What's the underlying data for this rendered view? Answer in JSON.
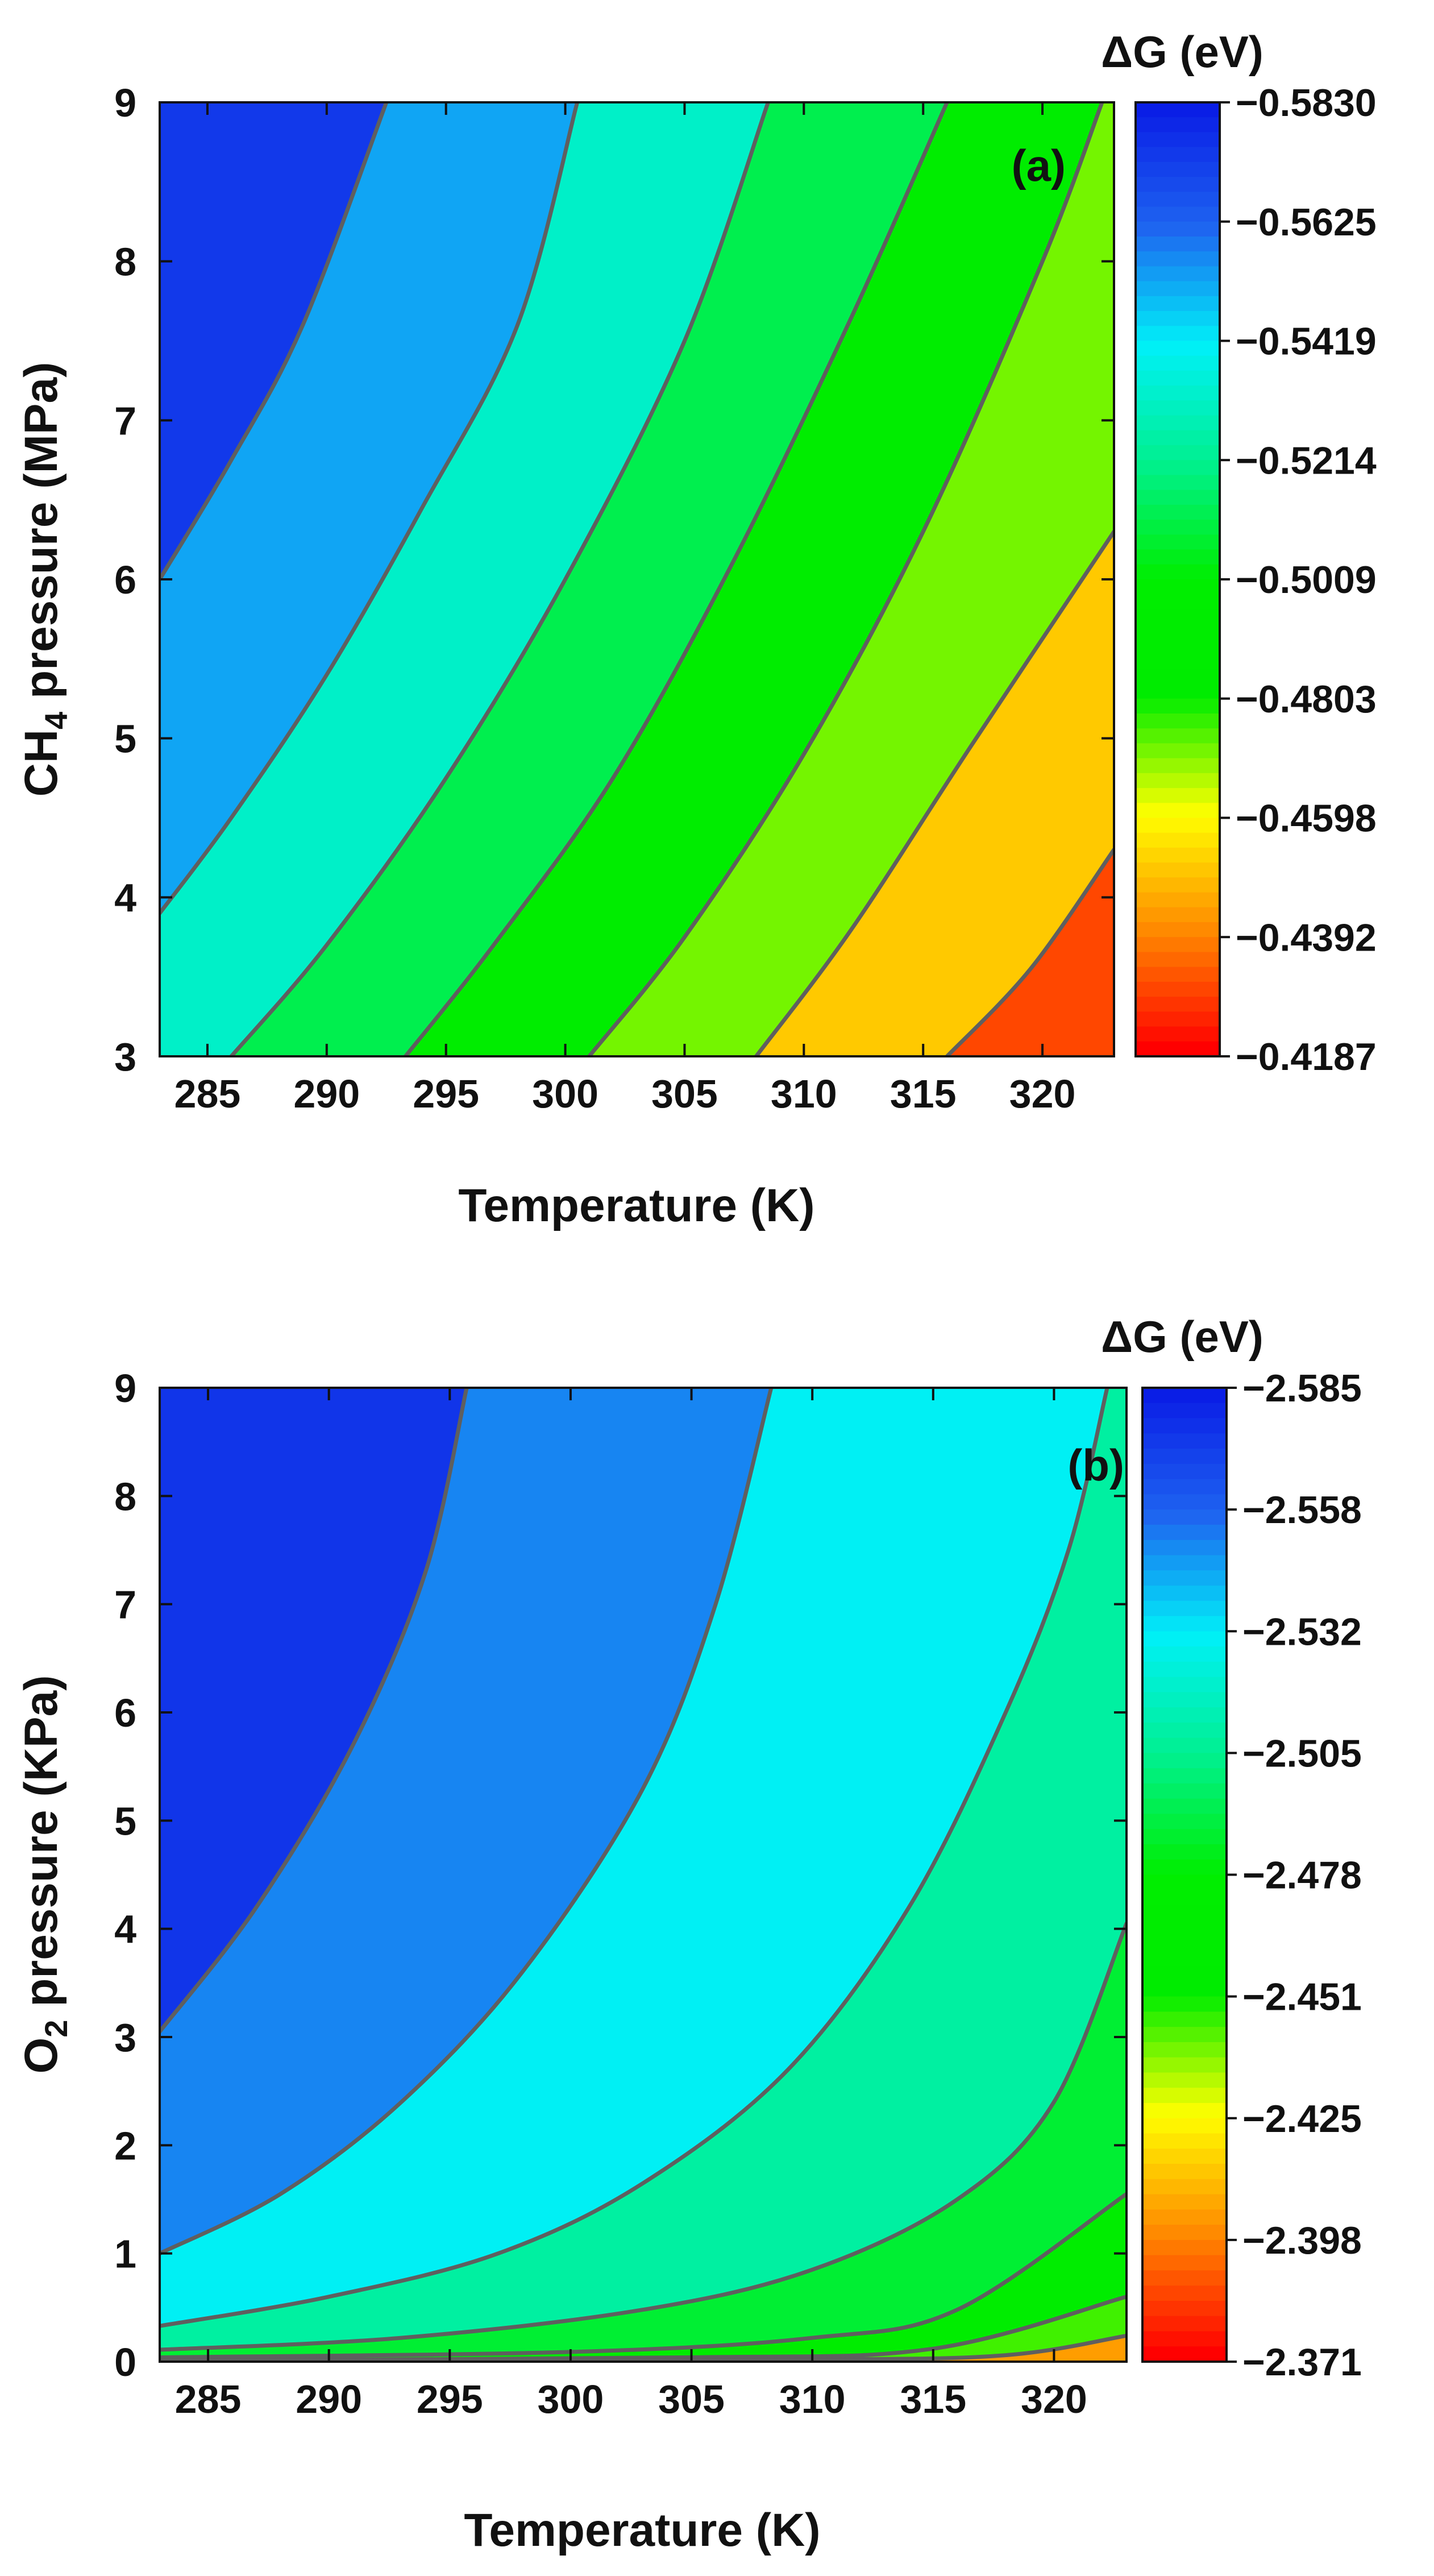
{
  "chart_data": [
    {
      "type": "heatmap",
      "panel_label": "(a)",
      "title": "",
      "xlabel": "Temperature (K)",
      "ylabel": "CH4 pressure (MPa)",
      "ylabel_main": "CH",
      "ylabel_subscript": "4",
      "ylabel_rest": " pressure (MPa)",
      "xlim": [
        283,
        323
      ],
      "ylim": [
        3,
        9
      ],
      "x_ticks": [
        285,
        290,
        295,
        300,
        305,
        310,
        315,
        320
      ],
      "y_ticks": [
        3,
        4,
        5,
        6,
        7,
        8,
        9
      ],
      "colorbar_title": "ΔG (eV)",
      "colorbar_range": [
        -0.583,
        -0.4187
      ],
      "colorbar_ticks": [
        "−0.5830",
        "−0.5625",
        "−0.5419",
        "−0.5214",
        "−0.5009",
        "−0.4803",
        "−0.4598",
        "−0.4392",
        "−0.4187"
      ],
      "colorbar_colors": [
        "#0a1ee6",
        "#1e64f0",
        "#00f0f8",
        "#00f090",
        "#00ee00",
        "#00ec00",
        "#ffff00",
        "#ff8800",
        "#ff0000"
      ],
      "contour_lines": [
        {
          "level": -0.563,
          "points": [
            [
              283,
              6.0
            ],
            [
              286,
              6.75
            ],
            [
              289,
              7.6
            ],
            [
              292.5,
              9.0
            ]
          ]
        },
        {
          "level": -0.543,
          "points": [
            [
              283,
              3.9
            ],
            [
              286,
              4.5
            ],
            [
              290,
              5.4
            ],
            [
              294,
              6.45
            ],
            [
              298,
              7.6
            ],
            [
              300.5,
              9.0
            ]
          ]
        },
        {
          "level": -0.522,
          "points": [
            [
              286,
              3.0
            ],
            [
              290,
              3.7
            ],
            [
              295,
              4.75
            ],
            [
              300,
              6.0
            ],
            [
              305,
              7.5
            ],
            [
              308.5,
              9.0
            ]
          ]
        },
        {
          "level": -0.502,
          "points": [
            [
              293.3,
              3.0
            ],
            [
              297,
              3.7
            ],
            [
              302,
              4.75
            ],
            [
              307,
              6.1
            ],
            [
              312,
              7.65
            ],
            [
              316,
              9.0
            ]
          ]
        },
        {
          "level": -0.481,
          "points": [
            [
              301,
              3.0
            ],
            [
              305,
              3.75
            ],
            [
              310,
              4.9
            ],
            [
              315,
              6.3
            ],
            [
              320,
              8.0
            ],
            [
              322.5,
              9.0
            ]
          ]
        },
        {
          "level": -0.461,
          "points": [
            [
              308,
              3.0
            ],
            [
              312,
              3.8
            ],
            [
              317,
              4.95
            ],
            [
              323,
              6.3
            ]
          ]
        },
        {
          "level": -0.44,
          "points": [
            [
              316,
              3.0
            ],
            [
              319.5,
              3.55
            ],
            [
              323,
              4.3
            ]
          ]
        }
      ]
    },
    {
      "type": "heatmap",
      "panel_label": "(b)",
      "title": "",
      "xlabel": "Temperature (K)",
      "ylabel": "O2 pressure (KPa)",
      "ylabel_main": "O",
      "ylabel_subscript": "2",
      "ylabel_rest": " pressure (KPa)",
      "xlim": [
        283,
        323
      ],
      "ylim": [
        0,
        9
      ],
      "x_ticks": [
        285,
        290,
        295,
        300,
        305,
        310,
        315,
        320
      ],
      "y_ticks": [
        0,
        1,
        2,
        3,
        4,
        5,
        6,
        7,
        8,
        9
      ],
      "colorbar_title": "ΔG (eV)",
      "colorbar_range": [
        -2.585,
        -2.371
      ],
      "colorbar_ticks": [
        "−2.585",
        "−2.558",
        "−2.532",
        "−2.505",
        "−2.478",
        "−2.451",
        "−2.425",
        "−2.398",
        "−2.371"
      ],
      "colorbar_colors": [
        "#0a1ee6",
        "#1e64f0",
        "#00f0f8",
        "#00f090",
        "#00ee00",
        "#00ec00",
        "#ffff00",
        "#ff8800",
        "#ff0000"
      ],
      "contour_lines": [
        {
          "level": -2.563,
          "points": [
            [
              283,
              3.05
            ],
            [
              287,
              4.2
            ],
            [
              291,
              5.7
            ],
            [
              294,
              7.3
            ],
            [
              295.7,
              9.0
            ]
          ]
        },
        {
          "level": -2.541,
          "points": [
            [
              283,
              1.0
            ],
            [
              288,
              1.55
            ],
            [
              293,
              2.4
            ],
            [
              298,
              3.6
            ],
            [
              303,
              5.3
            ],
            [
              306,
              7.0
            ],
            [
              308.3,
              9.0
            ]
          ]
        },
        {
          "level": -2.52,
          "points": [
            [
              283,
              0.33
            ],
            [
              290,
              0.6
            ],
            [
              297,
              1.0
            ],
            [
              303,
              1.65
            ],
            [
              309,
              2.7
            ],
            [
              314,
              4.2
            ],
            [
              318,
              6.0
            ],
            [
              320.6,
              7.5
            ],
            [
              322.2,
              9.0
            ]
          ]
        },
        {
          "level": -2.498,
          "points": [
            [
              283,
              0.11
            ],
            [
              293,
              0.22
            ],
            [
              303,
              0.48
            ],
            [
              310,
              0.85
            ],
            [
              316,
              1.5
            ],
            [
              320,
              2.4
            ],
            [
              323,
              4.05
            ]
          ]
        },
        {
          "level": -2.477,
          "points": [
            [
              283,
              0.04
            ],
            [
              300,
              0.09
            ],
            [
              310,
              0.22
            ],
            [
              316,
              0.48
            ],
            [
              323,
              1.55
            ]
          ]
        },
        {
          "level": -2.455,
          "points": [
            [
              283,
              0.015
            ],
            [
              305,
              0.04
            ],
            [
              315,
              0.12
            ],
            [
              323,
              0.6
            ]
          ]
        },
        {
          "level": -2.434,
          "points": [
            [
              290,
              0.01
            ],
            [
              310,
              0.02
            ],
            [
              318,
              0.06
            ],
            [
              323,
              0.24
            ]
          ]
        }
      ]
    }
  ]
}
